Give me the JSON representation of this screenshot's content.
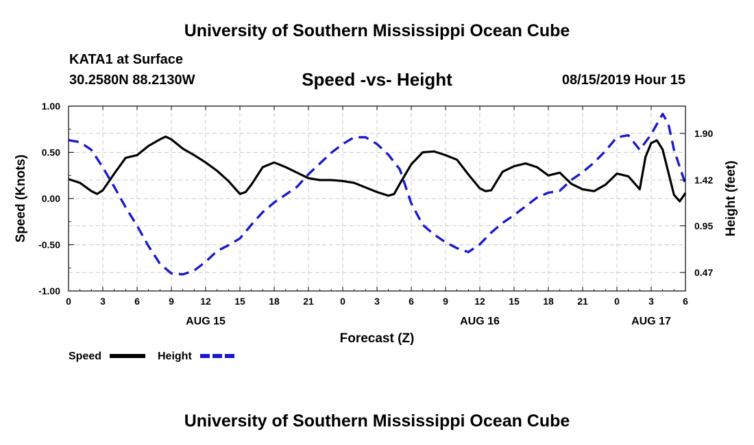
{
  "header": {
    "title": "University of Southern Mississippi Ocean Cube",
    "station": "KATA1 at Surface",
    "coords": "30.2580N 88.2130W",
    "subtitle": "Speed -vs- Height",
    "datetime": "08/15/2019 Hour 15"
  },
  "footer": {
    "title": "University of Southern Mississippi Ocean Cube"
  },
  "colors": {
    "speed": "#000000",
    "height": "#1a1acc",
    "grid": "#c8c8c8"
  },
  "chart_data": {
    "type": "line",
    "xlabel": "Forecast (Z)",
    "ylabel_left": "Speed (Knots)",
    "ylabel_right": "Height (feet)",
    "x_range_hours": [
      0,
      54
    ],
    "x_ticks": [
      {
        "hour": 0,
        "label": "0"
      },
      {
        "hour": 3,
        "label": "3"
      },
      {
        "hour": 6,
        "label": "6"
      },
      {
        "hour": 9,
        "label": "9"
      },
      {
        "hour": 12,
        "label": "12"
      },
      {
        "hour": 15,
        "label": "15"
      },
      {
        "hour": 18,
        "label": "18"
      },
      {
        "hour": 21,
        "label": "21"
      },
      {
        "hour": 24,
        "label": "0"
      },
      {
        "hour": 27,
        "label": "3"
      },
      {
        "hour": 30,
        "label": "6"
      },
      {
        "hour": 33,
        "label": "9"
      },
      {
        "hour": 36,
        "label": "12"
      },
      {
        "hour": 39,
        "label": "15"
      },
      {
        "hour": 42,
        "label": "18"
      },
      {
        "hour": 45,
        "label": "21"
      },
      {
        "hour": 48,
        "label": "0"
      },
      {
        "hour": 51,
        "label": "3"
      },
      {
        "hour": 54,
        "label": "6"
      }
    ],
    "day_labels": [
      {
        "hour": 12,
        "label": "AUG 15"
      },
      {
        "hour": 36,
        "label": "AUG 16"
      },
      {
        "hour": 51,
        "label": "AUG 17"
      }
    ],
    "y_left": {
      "range": [
        -1.0,
        1.0
      ],
      "ticks": [
        -1.0,
        -0.5,
        0.0,
        0.5,
        1.0
      ],
      "tick_labels": [
        "-1.00",
        "-0.50",
        "0.00",
        "0.50",
        "1.00"
      ]
    },
    "y_right": {
      "range": [
        0.28,
        2.18
      ],
      "ticks": [
        0.47,
        0.95,
        1.42,
        1.9
      ],
      "tick_labels": [
        "0.47",
        "0.95",
        "1.42",
        "1.90"
      ]
    },
    "series": [
      {
        "name": "Speed",
        "axis": "left",
        "style": "solid",
        "x": [
          0,
          1,
          2,
          2.5,
          3,
          4,
          5,
          6,
          7,
          8,
          8.5,
          9,
          10,
          11,
          12,
          13,
          14,
          15,
          15.5,
          16,
          17,
          18,
          19,
          20,
          21,
          22,
          23,
          24,
          25,
          26,
          27,
          28,
          28.5,
          29,
          30,
          31,
          32,
          33,
          34,
          35,
          36,
          36.5,
          37,
          38,
          39,
          40,
          41,
          42,
          43,
          44,
          45,
          46,
          47,
          48,
          49,
          50,
          50.5,
          51,
          51.5,
          52,
          53,
          53.5,
          54
        ],
        "values": [
          0.21,
          0.17,
          0.08,
          0.05,
          0.09,
          0.27,
          0.44,
          0.47,
          0.57,
          0.64,
          0.67,
          0.64,
          0.54,
          0.47,
          0.39,
          0.3,
          0.19,
          0.05,
          0.07,
          0.15,
          0.34,
          0.39,
          0.34,
          0.28,
          0.22,
          0.2,
          0.2,
          0.19,
          0.17,
          0.12,
          0.07,
          0.03,
          0.05,
          0.16,
          0.37,
          0.5,
          0.51,
          0.47,
          0.42,
          0.26,
          0.11,
          0.08,
          0.09,
          0.29,
          0.35,
          0.38,
          0.34,
          0.25,
          0.28,
          0.16,
          0.1,
          0.08,
          0.15,
          0.27,
          0.24,
          0.1,
          0.45,
          0.6,
          0.63,
          0.53,
          0.04,
          -0.03,
          0.06
        ]
      },
      {
        "name": "Height",
        "axis": "right",
        "style": "dashed",
        "x": [
          0,
          1,
          2,
          3,
          4,
          5,
          6,
          7,
          8,
          9,
          10,
          11,
          12,
          13,
          14,
          15,
          16,
          17,
          18,
          19,
          20,
          21,
          22,
          23,
          24,
          25,
          26,
          27,
          28,
          29,
          30,
          31,
          32,
          33,
          34,
          35,
          36,
          37,
          38,
          39,
          40,
          41,
          42,
          43,
          44,
          45,
          46,
          47,
          48,
          49,
          50,
          51,
          52,
          52.5,
          53,
          54
        ],
        "values": [
          1.83,
          1.81,
          1.73,
          1.55,
          1.35,
          1.14,
          0.95,
          0.74,
          0.56,
          0.46,
          0.45,
          0.49,
          0.58,
          0.69,
          0.75,
          0.82,
          0.96,
          1.09,
          1.19,
          1.27,
          1.35,
          1.48,
          1.59,
          1.7,
          1.79,
          1.86,
          1.86,
          1.79,
          1.68,
          1.53,
          1.18,
          0.96,
          0.86,
          0.78,
          0.72,
          0.68,
          0.76,
          0.88,
          0.98,
          1.06,
          1.15,
          1.24,
          1.29,
          1.31,
          1.42,
          1.5,
          1.6,
          1.72,
          1.86,
          1.88,
          1.73,
          1.89,
          2.1,
          2.0,
          1.73,
          1.38
        ]
      }
    ]
  }
}
